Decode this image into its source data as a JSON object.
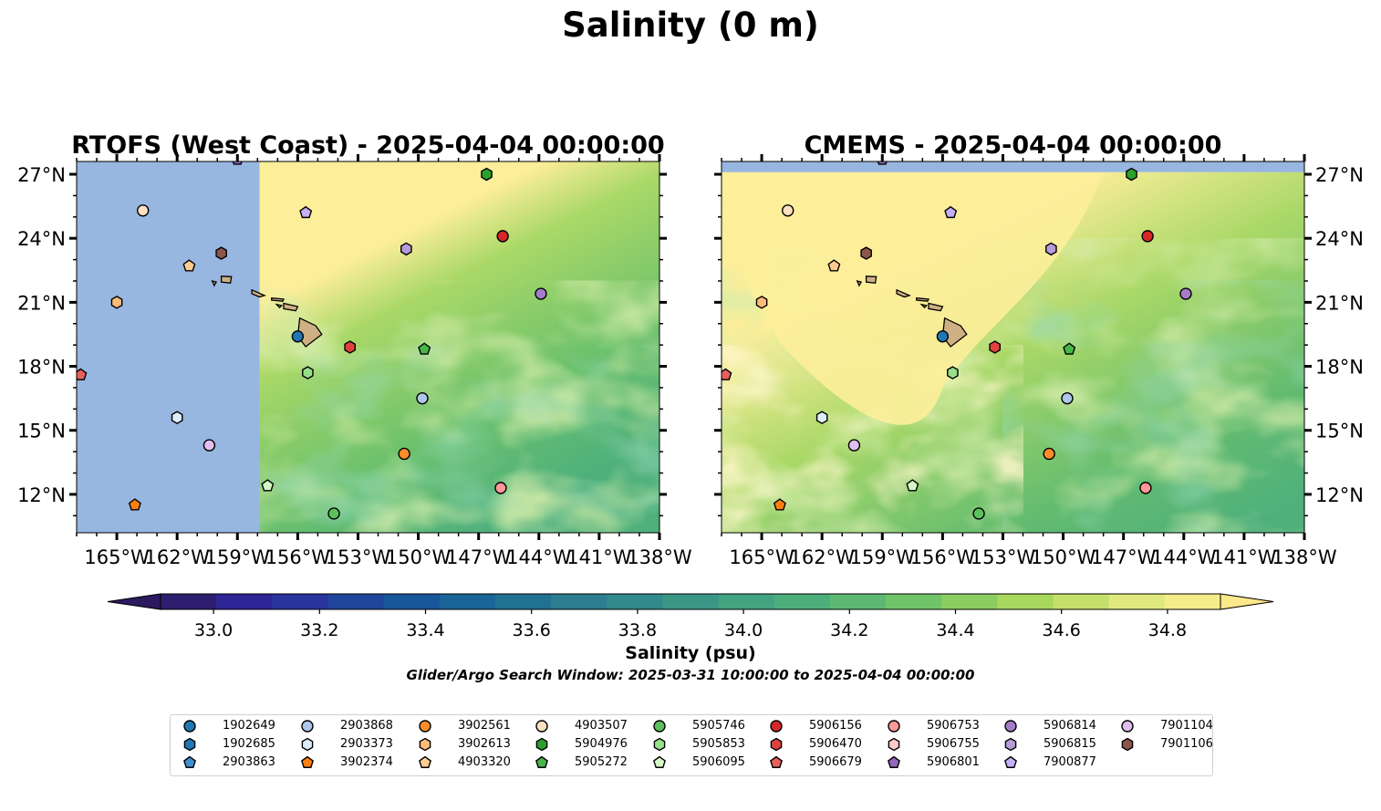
{
  "figure": {
    "title": "Salinity (0 m)",
    "note": "Glider/Argo Search Window: 2025-03-31 10:00:00 to 2025-04-04 00:00:00"
  },
  "colors": {
    "land": "#cfb084",
    "nodata": "#97b6e0",
    "high": "#fdee9a",
    "mid": "#a9d867",
    "low": "#4fb07c"
  },
  "chart_data": [
    {
      "type": "heatmap",
      "title": "RTOFS (West Coast) - 2025-04-04 00:00:00",
      "xlim": [
        -167,
        -138
      ],
      "ylim": [
        10.2,
        27.6
      ],
      "xticks": [
        -165,
        -162,
        -159,
        -156,
        -153,
        -150,
        -147,
        -144,
        -141,
        -138
      ],
      "xtick_labels": [
        "165°W",
        "162°W",
        "159°W",
        "156°W",
        "153°W",
        "150°W",
        "147°W",
        "144°W",
        "141°W",
        "138°W"
      ],
      "yticks": [
        12,
        15,
        18,
        21,
        24,
        27
      ],
      "ytick_labels": [
        "12°N",
        "15°N",
        "18°N",
        "21°N",
        "24°N",
        "27°N"
      ],
      "ytick_side": "left",
      "data_extent_west": -157.9
    },
    {
      "type": "heatmap",
      "title": "CMEMS - 2025-04-04 00:00:00",
      "xlim": [
        -167,
        -138
      ],
      "ylim": [
        10.2,
        27.6
      ],
      "xticks": [
        -165,
        -162,
        -159,
        -156,
        -153,
        -150,
        -147,
        -144,
        -141,
        -138
      ],
      "xtick_labels": [
        "165°W",
        "162°W",
        "159°W",
        "156°W",
        "153°W",
        "150°W",
        "147°W",
        "144°W",
        "141°W",
        "138°W"
      ],
      "yticks": [
        12,
        15,
        18,
        21,
        24,
        27
      ],
      "ytick_labels": [
        "12°N",
        "15°N",
        "18°N",
        "21°N",
        "24°N",
        "27°N"
      ],
      "ytick_side": "right",
      "data_extent_north": 27.1
    }
  ],
  "colorbar": {
    "label": "Salinity (psu)",
    "min": 32.9,
    "max": 34.9,
    "step": 0.1,
    "extend": "both",
    "ticks": [
      33.0,
      33.2,
      33.4,
      33.6,
      33.8,
      34.0,
      34.2,
      34.4,
      34.6,
      34.8
    ],
    "tick_labels": [
      "33.0",
      "33.2",
      "33.4",
      "33.6",
      "33.8",
      "34.0",
      "34.2",
      "34.4",
      "34.6",
      "34.8"
    ],
    "under_color": "#2b1a5e",
    "over_color": "#fde98b",
    "colors": [
      "#2d1e70",
      "#2e2596",
      "#2a349d",
      "#1f469a",
      "#18569a",
      "#1a6497",
      "#217193",
      "#2b7d8f",
      "#33898b",
      "#3b9686",
      "#42a380",
      "#4dae7c",
      "#5cb873",
      "#71c36a",
      "#8ccd61",
      "#a8d75d",
      "#c4e06a",
      "#e0e97d",
      "#f5ec8a"
    ]
  },
  "floats": [
    {
      "id": "1902649",
      "marker": "circle",
      "color": "#1f77b4",
      "lon": -156.0,
      "lat": 19.4
    },
    {
      "id": "1902685",
      "marker": "hexagon",
      "color": "#1f77b4"
    },
    {
      "id": "2903863",
      "marker": "pentagon",
      "color": "#3e8fd1"
    },
    {
      "id": "2903868",
      "marker": "circle",
      "color": "#aec7e8",
      "lon": -149.8,
      "lat": 16.5
    },
    {
      "id": "2903373",
      "marker": "hexagon",
      "color": "#dceefb",
      "lon": -162.0,
      "lat": 15.6
    },
    {
      "id": "3902374",
      "marker": "pentagon",
      "color": "#ff7f0e",
      "lon": -164.1,
      "lat": 11.5
    },
    {
      "id": "3902561",
      "marker": "circle",
      "color": "#ff8c2a",
      "lon": -150.7,
      "lat": 13.9
    },
    {
      "id": "3902613",
      "marker": "hexagon",
      "color": "#ffbb78",
      "lon": -165.0,
      "lat": 21.0
    },
    {
      "id": "4903320",
      "marker": "pentagon",
      "color": "#ffcc8f",
      "lon": -161.4,
      "lat": 22.7
    },
    {
      "id": "4903507",
      "marker": "circle",
      "color": "#ffe0c0",
      "lon": -163.7,
      "lat": 25.3
    },
    {
      "id": "5904976",
      "marker": "hexagon",
      "color": "#2ca02c",
      "lon": -146.6,
      "lat": 27.0
    },
    {
      "id": "5905272",
      "marker": "pentagon",
      "color": "#48b548",
      "lon": -149.7,
      "lat": 18.8
    },
    {
      "id": "5905746",
      "marker": "circle",
      "color": "#5cc05c",
      "lon": -154.2,
      "lat": 11.1
    },
    {
      "id": "5905853",
      "marker": "hexagon",
      "color": "#98df8a",
      "lon": -155.5,
      "lat": 17.7
    },
    {
      "id": "5906095",
      "marker": "pentagon",
      "color": "#d6f7c8",
      "lon": -157.5,
      "lat": 12.4
    },
    {
      "id": "5906156",
      "marker": "circle",
      "color": "#d62728",
      "lon": -145.8,
      "lat": 24.1
    },
    {
      "id": "5906470",
      "marker": "hexagon",
      "color": "#e0413f",
      "lon": -153.4,
      "lat": 18.9
    },
    {
      "id": "5906679",
      "marker": "pentagon",
      "color": "#e8605e",
      "lon": -166.8,
      "lat": 17.6
    },
    {
      "id": "5906753",
      "marker": "circle",
      "color": "#ff9896",
      "lon": -145.9,
      "lat": 12.3
    },
    {
      "id": "5906755",
      "marker": "hexagon",
      "color": "#ffc9c7"
    },
    {
      "id": "5906801",
      "marker": "pentagon",
      "color": "#9467bd",
      "lon": -159.0,
      "lat": 27.7
    },
    {
      "id": "5906814",
      "marker": "circle",
      "color": "#a57cc9",
      "lon": -143.9,
      "lat": 21.4
    },
    {
      "id": "5906815",
      "marker": "hexagon",
      "color": "#b69ad9",
      "lon": -150.6,
      "lat": 23.5
    },
    {
      "id": "7900877",
      "marker": "pentagon",
      "color": "#c5b0f5",
      "lon": -155.6,
      "lat": 25.2
    },
    {
      "id": "7901104",
      "marker": "circle",
      "color": "#e0bfee",
      "lon": -160.4,
      "lat": 14.3
    },
    {
      "id": "7901106",
      "marker": "hexagon",
      "color": "#8c564b",
      "lon": -159.8,
      "lat": 23.3
    }
  ]
}
